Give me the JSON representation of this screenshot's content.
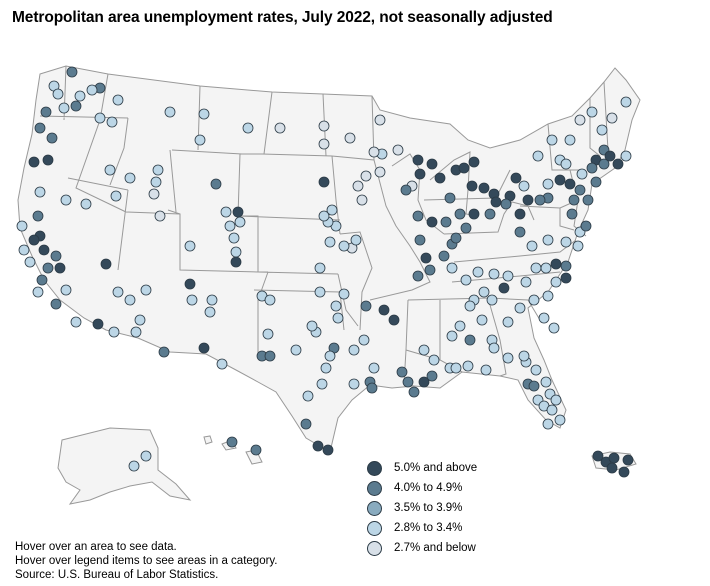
{
  "title": "Metropolitan area unemployment rates, July 2022, not seasonally adjusted",
  "legend": [
    {
      "label": "5.0% and above",
      "color": "#34495a"
    },
    {
      "label": "4.0% to 4.9%",
      "color": "#5b7b8f"
    },
    {
      "label": "3.5% to 3.9%",
      "color": "#89abbf"
    },
    {
      "label": "2.8% to 3.4%",
      "color": "#bcd6e6"
    },
    {
      "label": "2.7% and below",
      "color": "#d8e0e8"
    }
  ],
  "notes": {
    "hover_hint": "Hover over an area to see data.",
    "legend_hint": "Hover over legend items to see areas in a category.",
    "source": "Source: U.S. Bureau of Labor Statistics."
  },
  "colors": {
    "state_fill": "#f4f4f4",
    "state_border": "#999999",
    "marker_stroke": "#2b3a45"
  }
}
